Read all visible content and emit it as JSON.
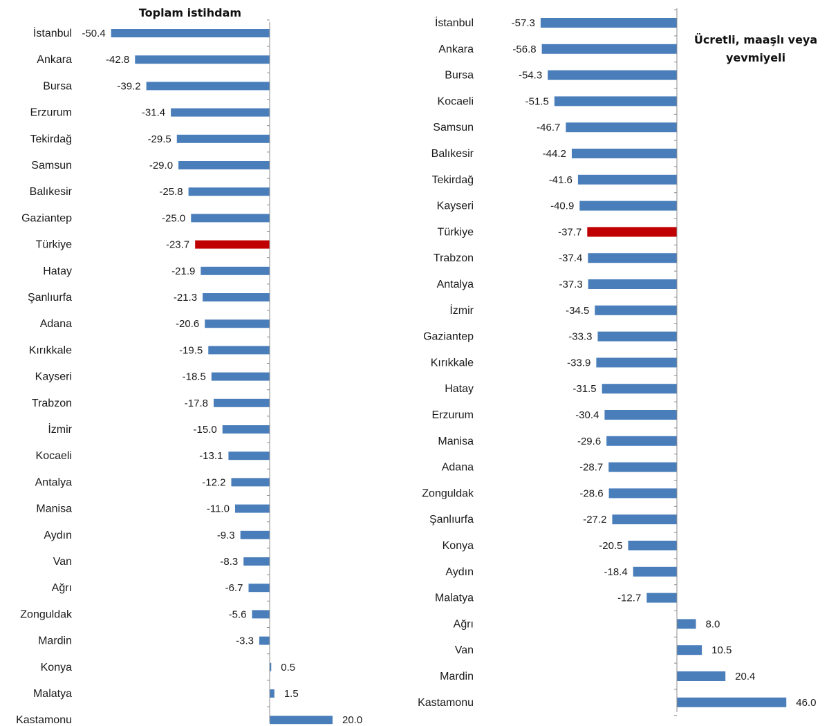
{
  "colors": {
    "bar": "#4a7ebb",
    "highlight": "#c00000",
    "axis": "#8c8c8c"
  },
  "chart_data": [
    {
      "type": "bar",
      "orientation": "horizontal",
      "title": "Toplam istihdam",
      "categories": [
        "İstanbul",
        "Ankara",
        "Bursa",
        "Erzurum",
        "Tekirdağ",
        "Samsun",
        "Balıkesir",
        "Gaziantep",
        "Türkiye",
        "Hatay",
        "Şanlıurfa",
        "Adana",
        "Kırıkkale",
        "Kayseri",
        "Trabzon",
        "İzmir",
        "Kocaeli",
        "Antalya",
        "Manisa",
        "Aydın",
        "Van",
        "Ağrı",
        "Zonguldak",
        "Mardin",
        "Konya",
        "Malatya",
        "Kastamonu"
      ],
      "values": [
        -50.4,
        -42.8,
        -39.2,
        -31.4,
        -29.5,
        -29.0,
        -25.8,
        -25.0,
        -23.7,
        -21.9,
        -21.3,
        -20.6,
        -19.5,
        -18.5,
        -17.8,
        -15.0,
        -13.1,
        -12.2,
        -11.0,
        -9.3,
        -8.3,
        -6.7,
        -5.6,
        -3.3,
        0.5,
        1.5,
        20.0
      ],
      "highlight": "Türkiye",
      "xlim": [
        -52,
        32
      ],
      "grid": false
    },
    {
      "type": "bar",
      "orientation": "horizontal",
      "title": "Ücretli, maaşlı veya yevmiyeli",
      "categories": [
        "İstanbul",
        "Ankara",
        "Bursa",
        "Kocaeli",
        "Samsun",
        "Balıkesir",
        "Tekirdağ",
        "Kayseri",
        "Türkiye",
        "Trabzon",
        "Antalya",
        "İzmir",
        "Gaziantep",
        "Kırıkkale",
        "Hatay",
        "Erzurum",
        "Manisa",
        "Adana",
        "Zonguldak",
        "Şanlıurfa",
        "Konya",
        "Aydın",
        "Malatya",
        "Ağrı",
        "Van",
        "Mardin",
        "Kastamonu"
      ],
      "values": [
        -57.3,
        -56.8,
        -54.3,
        -51.5,
        -46.7,
        -44.2,
        -41.6,
        -40.9,
        -37.7,
        -37.4,
        -37.3,
        -34.5,
        -33.3,
        -33.9,
        -31.5,
        -30.4,
        -29.6,
        -28.7,
        -28.6,
        -27.2,
        -20.5,
        -18.4,
        -12.7,
        8.0,
        10.5,
        20.4,
        46.0
      ],
      "highlight": "Türkiye",
      "xlim": [
        -60,
        60
      ],
      "grid": false
    }
  ]
}
